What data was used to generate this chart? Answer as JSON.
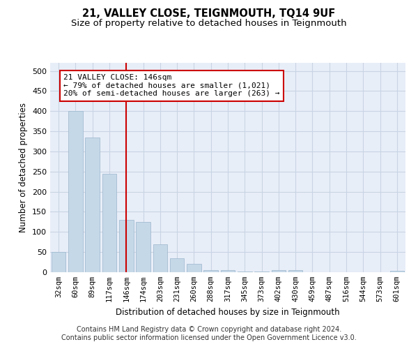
{
  "title": "21, VALLEY CLOSE, TEIGNMOUTH, TQ14 9UF",
  "subtitle": "Size of property relative to detached houses in Teignmouth",
  "xlabel": "Distribution of detached houses by size in Teignmouth",
  "ylabel": "Number of detached properties",
  "categories": [
    "32sqm",
    "60sqm",
    "89sqm",
    "117sqm",
    "146sqm",
    "174sqm",
    "203sqm",
    "231sqm",
    "260sqm",
    "288sqm",
    "317sqm",
    "345sqm",
    "373sqm",
    "402sqm",
    "430sqm",
    "459sqm",
    "487sqm",
    "516sqm",
    "544sqm",
    "573sqm",
    "601sqm"
  ],
  "values": [
    50,
    400,
    335,
    245,
    130,
    125,
    70,
    35,
    20,
    5,
    5,
    1,
    1,
    5,
    5,
    0,
    0,
    0,
    0,
    0,
    4
  ],
  "bar_color": "#c5d8e8",
  "bar_edgecolor": "#9ab5cc",
  "vline_index": 4,
  "vline_color": "#cc0000",
  "annotation_line1": "21 VALLEY CLOSE: 146sqm",
  "annotation_line2": "← 79% of detached houses are smaller (1,021)",
  "annotation_line3": "20% of semi-detached houses are larger (263) →",
  "annotation_box_edgecolor": "#cc0000",
  "ylim": [
    0,
    520
  ],
  "yticks": [
    0,
    50,
    100,
    150,
    200,
    250,
    300,
    350,
    400,
    450,
    500
  ],
  "grid_color": "#c8d4e4",
  "plot_bg_color": "#e8eef8",
  "footer_line1": "Contains HM Land Registry data © Crown copyright and database right 2024.",
  "footer_line2": "Contains public sector information licensed under the Open Government Licence v3.0."
}
